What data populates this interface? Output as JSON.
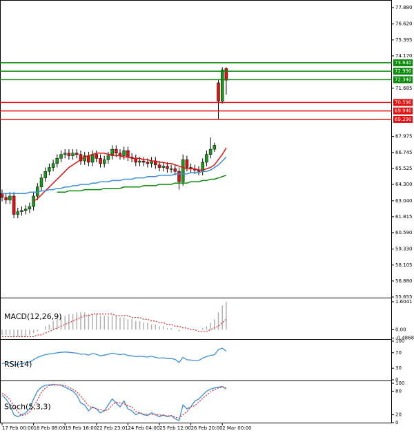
{
  "chart_data": [
    {
      "type": "candlestick",
      "categories": [
        "17 Feb 00:00",
        null,
        null,
        null,
        null,
        null,
        null,
        null,
        "18 Feb 08:00",
        null,
        null,
        null,
        null,
        null,
        null,
        null,
        "19 Feb 16:00",
        null,
        null,
        null,
        null,
        null,
        null,
        null,
        "22 Feb 23:01",
        null,
        null,
        null,
        null,
        null,
        null,
        null,
        "24 Feb 04:00",
        null,
        null,
        null,
        null,
        null,
        null,
        null,
        "25 Feb 12:00",
        null,
        null,
        null,
        null,
        null,
        null,
        null,
        "26 Feb 20:00",
        null,
        null,
        null,
        null,
        null,
        null,
        null,
        "2 Mar 00:00",
        null
      ],
      "open": [
        63.6,
        63.3,
        63.1,
        63.4,
        62.0,
        62.2,
        62.3,
        62.4,
        62.6,
        63.4,
        64.1,
        64.8,
        65.3,
        65.6,
        65.9,
        66.3,
        66.6,
        66.7,
        66.5,
        66.7,
        66.6,
        66.1,
        66.5,
        66.0,
        66.6,
        66.3,
        65.9,
        66.2,
        66.5,
        67.0,
        66.7,
        66.5,
        66.9,
        66.4,
        66.3,
        66.0,
        66.1,
        66.0,
        65.9,
        66.1,
        65.8,
        65.6,
        65.7,
        65.5,
        65.5,
        65.3,
        64.5,
        66.2,
        65.6,
        65.5,
        65.4,
        65.3,
        66.0,
        66.6,
        67.0,
        72.1,
        70.7,
        73.2
      ],
      "high": [
        63.9,
        63.6,
        63.7,
        63.7,
        62.5,
        62.6,
        62.7,
        62.9,
        63.7,
        64.4,
        65.1,
        65.6,
        65.9,
        66.2,
        66.6,
        66.9,
        67.0,
        67.0,
        67.0,
        67.0,
        66.9,
        66.8,
        66.8,
        66.9,
        66.9,
        66.6,
        66.5,
        66.8,
        67.3,
        67.3,
        67.0,
        67.2,
        67.2,
        66.7,
        66.6,
        66.4,
        66.4,
        66.3,
        66.4,
        66.4,
        66.1,
        66.0,
        66.0,
        65.8,
        65.8,
        65.6,
        66.6,
        66.5,
        65.9,
        65.8,
        65.7,
        66.3,
        66.9,
        67.9,
        67.5,
        72.3,
        73.3,
        73.3
      ],
      "low": [
        63.0,
        62.8,
        62.8,
        61.7,
        61.7,
        61.9,
        62.0,
        62.1,
        62.3,
        63.1,
        63.8,
        64.5,
        65.0,
        65.3,
        65.6,
        66.0,
        66.3,
        66.2,
        66.2,
        66.3,
        65.8,
        65.8,
        65.7,
        65.7,
        66.0,
        65.6,
        65.6,
        65.9,
        66.2,
        66.4,
        66.2,
        66.2,
        66.1,
        66.0,
        65.7,
        65.7,
        65.7,
        65.6,
        65.6,
        65.5,
        65.3,
        65.3,
        65.2,
        65.2,
        65.0,
        63.9,
        64.2,
        65.3,
        65.2,
        65.1,
        65.0,
        65.0,
        65.7,
        66.3,
        66.8,
        69.3,
        70.5,
        71.2
      ],
      "close": [
        63.3,
        63.1,
        63.4,
        62.0,
        62.2,
        62.3,
        62.4,
        62.6,
        63.4,
        64.1,
        64.8,
        65.3,
        65.6,
        65.9,
        66.3,
        66.6,
        66.7,
        66.5,
        66.7,
        66.6,
        66.1,
        66.5,
        66.0,
        66.6,
        66.3,
        65.9,
        66.2,
        66.5,
        67.0,
        66.7,
        66.5,
        66.9,
        66.4,
        66.3,
        66.0,
        66.1,
        66.0,
        65.9,
        66.1,
        65.8,
        65.6,
        65.7,
        65.5,
        65.5,
        65.3,
        64.5,
        66.2,
        65.6,
        65.5,
        65.4,
        65.3,
        66.0,
        66.6,
        67.0,
        67.3,
        70.7,
        73.1,
        72.3
      ],
      "up_color": "#1a9a1a",
      "down_color": "#e01010",
      "series": [
        {
          "color": "#e01010",
          "values": [
            null,
            null,
            null,
            null,
            null,
            null,
            null,
            null,
            63.0,
            63.2,
            63.5,
            63.8,
            64.1,
            64.4,
            64.7,
            65.0,
            65.3,
            65.6,
            65.8,
            66.0,
            66.2,
            66.4,
            66.5,
            66.6,
            66.7,
            66.7,
            66.7,
            66.6,
            66.6,
            66.5,
            66.5,
            66.4,
            66.4,
            66.3,
            66.3,
            66.3,
            66.2,
            66.2,
            66.1,
            66.1,
            66.0,
            66.0,
            65.9,
            65.9,
            65.8,
            65.7,
            65.6,
            65.5,
            65.5,
            65.5,
            65.4,
            65.4,
            65.5,
            65.6,
            65.8,
            66.2,
            66.6,
            67.1
          ]
        },
        {
          "color": "#3a8fd8",
          "values": [
            63.6,
            63.6,
            63.6,
            63.6,
            63.6,
            63.6,
            63.6,
            63.7,
            63.7,
            63.7,
            63.8,
            63.8,
            63.9,
            63.9,
            64.0,
            64.0,
            64.1,
            64.1,
            64.2,
            64.2,
            64.3,
            64.3,
            64.3,
            64.4,
            64.4,
            64.5,
            64.5,
            64.5,
            64.6,
            64.6,
            64.6,
            64.7,
            64.7,
            64.7,
            64.8,
            64.8,
            64.8,
            64.9,
            64.9,
            64.9,
            65.0,
            65.0,
            65.0,
            65.0,
            65.1,
            65.1,
            65.1,
            65.1,
            65.2,
            65.2,
            65.2,
            65.3,
            65.3,
            65.4,
            65.6,
            65.8,
            66.1,
            66.4
          ]
        },
        {
          "color": "#0a8a0a",
          "values": [
            null,
            null,
            null,
            null,
            null,
            null,
            null,
            null,
            null,
            null,
            null,
            null,
            null,
            null,
            63.7,
            63.7,
            63.7,
            63.8,
            63.8,
            63.8,
            63.8,
            63.9,
            63.9,
            63.9,
            63.9,
            63.9,
            64.0,
            64.0,
            64.0,
            64.0,
            64.0,
            64.1,
            64.1,
            64.1,
            64.1,
            64.1,
            64.2,
            64.2,
            64.2,
            64.2,
            64.3,
            64.3,
            64.3,
            64.3,
            64.4,
            64.4,
            64.4,
            64.4,
            64.5,
            64.5,
            64.5,
            64.6,
            64.6,
            64.7,
            64.7,
            64.8,
            64.9,
            65.0
          ]
        }
      ],
      "levels": [
        {
          "value": 73.64,
          "label": "73.640",
          "color": "#0a8a0a"
        },
        {
          "value": 72.99,
          "label": "72.990",
          "color": "#0a8a0a"
        },
        {
          "value": 72.34,
          "label": "72.340",
          "color": "#0a8a0a"
        },
        {
          "value": 70.59,
          "label": "70.590",
          "color": "#e01010"
        },
        {
          "value": 69.94,
          "label": "69.940",
          "color": "#e01010"
        },
        {
          "value": 69.29,
          "label": "69.290",
          "color": "#e01010"
        }
      ],
      "ylim": [
        55.655,
        78.25
      ],
      "yticks": [
        {
          "value": 77.88,
          "label": "77.880"
        },
        {
          "value": 76.62,
          "label": "76.620"
        },
        75.395,
        {
          "value": 74.17,
          "label": "74.170"
        },
        71.685,
        67.975,
        66.745,
        65.525,
        {
          "value": 64.3,
          "label": "64.300"
        },
        {
          "value": 63.04,
          "label": "63.040"
        },
        61.815,
        {
          "value": 60.59,
          "label": "60.590"
        },
        {
          "value": 59.33,
          "label": "59.330"
        },
        58.105,
        {
          "value": 56.88,
          "label": "56.880"
        },
        55.655
      ]
    },
    {
      "type": "macd",
      "title": "MACD(12,26,9)",
      "bars": {
        "color": "#b0b0b0",
        "values": [
          -0.3,
          -0.3,
          -0.3,
          -0.4,
          -0.4,
          -0.4,
          -0.4,
          -0.3,
          -0.2,
          -0.1,
          0.0,
          0.2,
          0.3,
          0.5,
          0.6,
          0.7,
          0.8,
          0.9,
          0.9,
          1.0,
          1.0,
          1.0,
          0.9,
          0.9,
          0.9,
          0.8,
          0.8,
          0.8,
          0.8,
          0.8,
          0.7,
          0.7,
          0.6,
          0.6,
          0.5,
          0.5,
          0.4,
          0.4,
          0.3,
          0.3,
          0.2,
          0.2,
          0.1,
          0.1,
          0.0,
          -0.1,
          0.0,
          0.0,
          0.0,
          0.0,
          0.0,
          0.1,
          0.2,
          0.4,
          0.6,
          1.0,
          1.4,
          1.6
        ]
      },
      "series": [
        {
          "color": "#e03030",
          "dash": true,
          "values": [
            -0.4,
            -0.4,
            -0.4,
            -0.4,
            -0.4,
            -0.4,
            -0.4,
            -0.4,
            -0.4,
            -0.3,
            -0.3,
            -0.2,
            -0.1,
            0.0,
            0.1,
            0.2,
            0.3,
            0.4,
            0.5,
            0.6,
            0.7,
            0.8,
            0.8,
            0.9,
            0.9,
            0.9,
            0.9,
            0.9,
            0.9,
            0.8,
            0.8,
            0.8,
            0.8,
            0.7,
            0.7,
            0.7,
            0.6,
            0.6,
            0.5,
            0.5,
            0.4,
            0.4,
            0.3,
            0.3,
            0.2,
            0.2,
            0.1,
            0.1,
            0.0,
            0.0,
            -0.1,
            -0.1,
            -0.1,
            0.0,
            0.1,
            0.2,
            0.4,
            0.6
          ]
        }
      ],
      "ylim": [
        -0.5,
        1.72
      ],
      "yticks": [
        1.6041,
        {
          "value": 0,
          "label": "0.00"
        },
        -0.4868
      ]
    },
    {
      "type": "line",
      "title": "RSI(14)",
      "series": [
        {
          "color": "#3a8fd8",
          "values": [
            42,
            44,
            45,
            38,
            40,
            42,
            44,
            46,
            52,
            58,
            62,
            65,
            67,
            68,
            70,
            71,
            72,
            71,
            70,
            69,
            66,
            67,
            64,
            68,
            66,
            62,
            64,
            66,
            69,
            67,
            65,
            67,
            63,
            62,
            60,
            61,
            60,
            59,
            61,
            58,
            56,
            57,
            55,
            55,
            53,
            45,
            58,
            52,
            51,
            50,
            50,
            56,
            60,
            63,
            65,
            78,
            82,
            74
          ]
        }
      ],
      "ylim": [
        0,
        100
      ],
      "yticks": [
        100,
        70,
        30,
        0
      ]
    },
    {
      "type": "line",
      "title": "Stoch(5,3,3)",
      "series": [
        {
          "color": "#3a8fd8",
          "values": [
            70,
            60,
            45,
            20,
            15,
            20,
            25,
            35,
            60,
            80,
            90,
            95,
            96,
            97,
            96,
            95,
            90,
            85,
            80,
            70,
            50,
            45,
            30,
            40,
            35,
            25,
            30,
            45,
            60,
            50,
            40,
            55,
            35,
            30,
            20,
            25,
            20,
            18,
            25,
            20,
            15,
            20,
            15,
            18,
            10,
            5,
            45,
            35,
            40,
            55,
            60,
            70,
            80,
            85,
            88,
            90,
            92,
            85
          ]
        },
        {
          "color": "#e03030",
          "dash": true,
          "values": [
            75,
            68,
            58,
            42,
            27,
            18,
            20,
            27,
            40,
            58,
            77,
            88,
            94,
            96,
            96,
            96,
            94,
            90,
            85,
            78,
            67,
            55,
            42,
            38,
            35,
            33,
            30,
            33,
            45,
            52,
            50,
            48,
            43,
            40,
            28,
            25,
            22,
            21,
            21,
            21,
            20,
            18,
            17,
            18,
            14,
            11,
            20,
            28,
            40,
            43,
            52,
            62,
            70,
            78,
            84,
            88,
            90,
            89
          ]
        }
      ],
      "ylim": [
        0,
        100
      ],
      "yticks": [
        100,
        80,
        20,
        0
      ]
    }
  ]
}
